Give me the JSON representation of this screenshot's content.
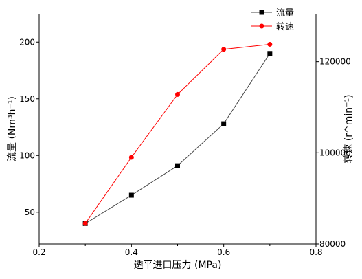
{
  "chart_data": {
    "type": "line",
    "xlabel": "透平进口压力 (MPa)",
    "ylabel_left": "流量 (Nm³h⁻¹)",
    "ylabel_right": "转速 (r^min⁻¹)",
    "xlim": [
      0.2,
      0.8
    ],
    "ylim_left": [
      22,
      225
    ],
    "ylim_right": [
      80000,
      130500
    ],
    "x_ticks": [
      "0.2",
      "0.4",
      "0.6",
      "0.8"
    ],
    "x_tick_values": [
      0.2,
      0.4,
      0.6,
      0.8
    ],
    "y_left_ticks": [
      "50",
      "100",
      "150",
      "200"
    ],
    "y_left_tick_values": [
      50,
      100,
      150,
      200
    ],
    "y_right_ticks": [
      "80000",
      "100000",
      "120000"
    ],
    "y_right_tick_values": [
      80000,
      100000,
      120000
    ],
    "legend_position": "top-right",
    "grid": false,
    "series": [
      {
        "name": "流量",
        "axis": "left",
        "color": "#000000",
        "stroke": "#444444",
        "marker": "square",
        "x": [
          0.3,
          0.4,
          0.5,
          0.6,
          0.7
        ],
        "values": [
          40,
          65,
          91,
          128,
          190
        ]
      },
      {
        "name": "转速",
        "axis": "right",
        "color": "#ff0000",
        "stroke": "#ff0000",
        "marker": "circle",
        "x": [
          0.3,
          0.4,
          0.5,
          0.6,
          0.7
        ],
        "values": [
          84500,
          99000,
          112800,
          122700,
          123800
        ]
      }
    ]
  }
}
